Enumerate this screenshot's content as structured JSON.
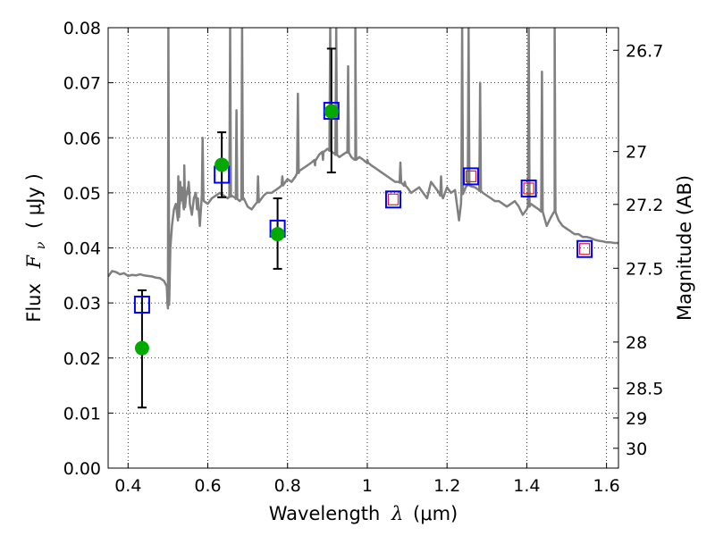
{
  "chart_data": {
    "type": "scatter",
    "xlabel_text": "Wavelength",
    "xlabel_symbol": "λ",
    "xlabel_unit": "(μm)",
    "ylabel_text": "Flux",
    "ylabel_symbol": "F",
    "ylabel_subscript": "ν",
    "ylabel_unit": "( μJy )",
    "y2label": "Magnitude (AB)",
    "xlim": [
      0.35,
      1.63
    ],
    "ylim": [
      0.0,
      0.08
    ],
    "grid": true,
    "x_ticks": [
      0.4,
      0.6,
      0.8,
      1.0,
      1.2,
      1.4,
      1.6
    ],
    "x_tick_labels": [
      "0.4",
      "0.6",
      "0.8",
      "1",
      "1.2",
      "1.4",
      "1.6"
    ],
    "y_ticks": [
      0.0,
      0.01,
      0.02,
      0.03,
      0.04,
      0.05,
      0.06,
      0.07,
      0.08
    ],
    "y_tick_labels": [
      "0.00",
      "0.01",
      "0.02",
      "0.03",
      "0.04",
      "0.05",
      "0.06",
      "0.07",
      "0.08"
    ],
    "y2_ticks": [
      {
        "label": "26.7",
        "flux": 0.0759
      },
      {
        "label": "27",
        "flux": 0.0575
      },
      {
        "label": "27.2",
        "flux": 0.0479
      },
      {
        "label": "27.5",
        "flux": 0.0363
      },
      {
        "label": "28",
        "flux": 0.0229
      },
      {
        "label": "28.5",
        "flux": 0.0145
      },
      {
        "label": "29",
        "flux": 0.0091
      },
      {
        "label": "30",
        "flux": 0.0036
      }
    ],
    "series": [
      {
        "kind": "observed",
        "color": "#00aa00",
        "points": [
          {
            "x": 0.435,
            "y": 0.0218,
            "yerr_low": 0.011,
            "yerr_high": 0.0323
          },
          {
            "x": 0.635,
            "y": 0.0551,
            "yerr_low": 0.0492,
            "yerr_high": 0.061
          },
          {
            "x": 0.775,
            "y": 0.0425,
            "yerr_low": 0.0362,
            "yerr_high": 0.049
          },
          {
            "x": 0.91,
            "y": 0.0648,
            "yerr_low": 0.0537,
            "yerr_high": 0.0762
          }
        ]
      },
      {
        "kind": "model-photometry",
        "color": "#0000ff",
        "points": [
          {
            "x": 0.435,
            "y": 0.0297
          },
          {
            "x": 0.635,
            "y": 0.0533
          },
          {
            "x": 0.775,
            "y": 0.0435
          },
          {
            "x": 0.91,
            "y": 0.0649
          },
          {
            "x": 1.065,
            "y": 0.0488
          },
          {
            "x": 1.26,
            "y": 0.053
          },
          {
            "x": 1.405,
            "y": 0.0508
          },
          {
            "x": 1.545,
            "y": 0.0398
          }
        ]
      },
      {
        "kind": "model-photometry-inner",
        "color": "#dd2222",
        "points": [
          {
            "x": 1.065,
            "y": 0.0488
          },
          {
            "x": 1.26,
            "y": 0.053
          },
          {
            "x": 1.405,
            "y": 0.0508
          },
          {
            "x": 1.545,
            "y": 0.0398
          }
        ]
      },
      {
        "kind": "template-spectrum",
        "color": "#808080",
        "points": [
          [
            0.35,
            0.0348
          ],
          [
            0.36,
            0.0358
          ],
          [
            0.37,
            0.0356
          ],
          [
            0.38,
            0.0352
          ],
          [
            0.39,
            0.0354
          ],
          [
            0.4,
            0.0349
          ],
          [
            0.41,
            0.0351
          ],
          [
            0.42,
            0.035
          ],
          [
            0.43,
            0.0352
          ],
          [
            0.44,
            0.035
          ],
          [
            0.45,
            0.0349
          ],
          [
            0.46,
            0.0348
          ],
          [
            0.47,
            0.0346
          ],
          [
            0.48,
            0.0345
          ],
          [
            0.49,
            0.034
          ],
          [
            0.497,
            0.033
          ],
          [
            0.5,
            0.029
          ],
          [
            0.503,
            0.031
          ],
          [
            0.506,
            0.04
          ],
          [
            0.51,
            0.044
          ],
          [
            0.515,
            0.047
          ],
          [
            0.52,
            0.048
          ],
          [
            0.525,
            0.045
          ],
          [
            0.53,
            0.048
          ],
          [
            0.535,
            0.051
          ],
          [
            0.54,
            0.047
          ],
          [
            0.545,
            0.049
          ],
          [
            0.55,
            0.051
          ],
          [
            0.555,
            0.048
          ],
          [
            0.56,
            0.046
          ],
          [
            0.565,
            0.049
          ],
          [
            0.57,
            0.05
          ],
          [
            0.575,
            0.047
          ],
          [
            0.58,
            0.044
          ],
          [
            0.585,
            0.0495
          ],
          [
            0.59,
            0.0485
          ],
          [
            0.6,
            0.048
          ],
          [
            0.61,
            0.049
          ],
          [
            0.62,
            0.0495
          ],
          [
            0.63,
            0.05
          ],
          [
            0.64,
            0.0495
          ],
          [
            0.65,
            0.049
          ],
          [
            0.66,
            0.0495
          ],
          [
            0.67,
            0.049
          ],
          [
            0.68,
            0.0485
          ],
          [
            0.69,
            0.049
          ],
          [
            0.7,
            0.0475
          ],
          [
            0.71,
            0.047
          ],
          [
            0.72,
            0.048
          ],
          [
            0.73,
            0.0485
          ],
          [
            0.74,
            0.0495
          ],
          [
            0.75,
            0.05
          ],
          [
            0.76,
            0.05
          ],
          [
            0.77,
            0.0505
          ],
          [
            0.78,
            0.051
          ],
          [
            0.79,
            0.0515
          ],
          [
            0.8,
            0.0525
          ],
          [
            0.81,
            0.052
          ],
          [
            0.82,
            0.053
          ],
          [
            0.83,
            0.054
          ],
          [
            0.84,
            0.0545
          ],
          [
            0.85,
            0.055
          ],
          [
            0.86,
            0.0555
          ],
          [
            0.87,
            0.056
          ],
          [
            0.88,
            0.057
          ],
          [
            0.89,
            0.0575
          ],
          [
            0.9,
            0.058
          ],
          [
            0.91,
            0.0575
          ],
          [
            0.92,
            0.057
          ],
          [
            0.93,
            0.0565
          ],
          [
            0.94,
            0.057
          ],
          [
            0.95,
            0.0575
          ],
          [
            0.96,
            0.0565
          ],
          [
            0.97,
            0.056
          ],
          [
            0.98,
            0.0565
          ],
          [
            0.99,
            0.056
          ],
          [
            1.0,
            0.0555
          ],
          [
            1.01,
            0.055
          ],
          [
            1.02,
            0.0545
          ],
          [
            1.03,
            0.054
          ],
          [
            1.04,
            0.0535
          ],
          [
            1.05,
            0.053
          ],
          [
            1.06,
            0.0525
          ],
          [
            1.07,
            0.052
          ],
          [
            1.08,
            0.052
          ],
          [
            1.09,
            0.0515
          ],
          [
            1.1,
            0.051
          ],
          [
            1.11,
            0.05
          ],
          [
            1.12,
            0.0505
          ],
          [
            1.13,
            0.051
          ],
          [
            1.14,
            0.05
          ],
          [
            1.15,
            0.049
          ],
          [
            1.16,
            0.052
          ],
          [
            1.17,
            0.051
          ],
          [
            1.18,
            0.05
          ],
          [
            1.19,
            0.049
          ],
          [
            1.2,
            0.051
          ],
          [
            1.21,
            0.05
          ],
          [
            1.22,
            0.0505
          ],
          [
            1.23,
            0.045
          ],
          [
            1.235,
            0.048
          ],
          [
            1.24,
            0.051
          ],
          [
            1.25,
            0.0515
          ],
          [
            1.26,
            0.0512
          ],
          [
            1.27,
            0.051
          ],
          [
            1.28,
            0.0505
          ],
          [
            1.29,
            0.05
          ],
          [
            1.3,
            0.0495
          ],
          [
            1.31,
            0.049
          ],
          [
            1.32,
            0.0485
          ],
          [
            1.33,
            0.0485
          ],
          [
            1.34,
            0.048
          ],
          [
            1.35,
            0.0475
          ],
          [
            1.36,
            0.048
          ],
          [
            1.37,
            0.0485
          ],
          [
            1.38,
            0.0475
          ],
          [
            1.39,
            0.046
          ],
          [
            1.4,
            0.047
          ],
          [
            1.41,
            0.048
          ],
          [
            1.42,
            0.0475
          ],
          [
            1.43,
            0.047
          ],
          [
            1.44,
            0.0465
          ],
          [
            1.45,
            0.044
          ],
          [
            1.46,
            0.0455
          ],
          [
            1.47,
            0.0465
          ],
          [
            1.48,
            0.045
          ],
          [
            1.49,
            0.044
          ],
          [
            1.5,
            0.0435
          ],
          [
            1.51,
            0.043
          ],
          [
            1.52,
            0.0425
          ],
          [
            1.53,
            0.0425
          ],
          [
            1.54,
            0.042
          ],
          [
            1.55,
            0.042
          ],
          [
            1.56,
            0.0418
          ],
          [
            1.57,
            0.0415
          ],
          [
            1.58,
            0.0413
          ],
          [
            1.59,
            0.0412
          ],
          [
            1.6,
            0.041
          ],
          [
            1.61,
            0.041
          ],
          [
            1.62,
            0.0409
          ],
          [
            1.63,
            0.0409
          ]
        ],
        "emission_lines": [
          [
            0.501,
            0.08
          ],
          [
            0.526,
            0.053
          ],
          [
            0.531,
            0.052
          ],
          [
            0.541,
            0.055
          ],
          [
            0.552,
            0.052
          ],
          [
            0.575,
            0.049
          ],
          [
            0.587,
            0.06
          ],
          [
            0.656,
            0.08
          ],
          [
            0.672,
            0.065
          ],
          [
            0.686,
            0.08
          ],
          [
            0.726,
            0.053
          ],
          [
            0.75,
            0.05
          ],
          [
            0.787,
            0.053
          ],
          [
            0.826,
            0.068
          ],
          [
            0.869,
            0.055
          ],
          [
            0.889,
            0.056
          ],
          [
            0.907,
            0.08
          ],
          [
            0.922,
            0.08
          ],
          [
            0.952,
            0.073
          ],
          [
            0.97,
            0.08
          ],
          [
            1.0,
            0.056
          ],
          [
            1.083,
            0.0555
          ],
          [
            1.094,
            0.052
          ],
          [
            1.185,
            0.053
          ],
          [
            1.238,
            0.08
          ],
          [
            1.254,
            0.08
          ],
          [
            1.283,
            0.07
          ],
          [
            1.405,
            0.08
          ],
          [
            1.438,
            0.072
          ],
          [
            1.47,
            0.08
          ]
        ]
      }
    ]
  }
}
